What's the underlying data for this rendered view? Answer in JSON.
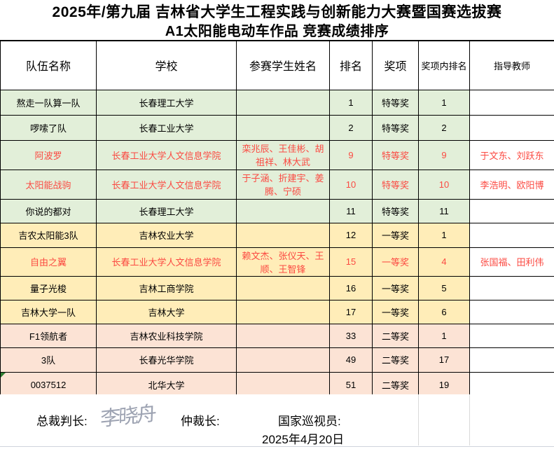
{
  "title": {
    "line1": "2025年/第九届 吉林省大学生工程实践与创新能力大赛暨国赛选拔赛",
    "line2": "A1太阳能电动车作品 竞赛成绩排序"
  },
  "table": {
    "headers": [
      "队伍名称",
      "学校",
      "参赛学生姓名",
      "排名",
      "奖项",
      "奖项内排名",
      "指导教师"
    ],
    "rows": [
      {
        "team": "熬走一队算一队",
        "school": "长春理工大学",
        "students": "",
        "rank": "1",
        "award": "特等奖",
        "award_rank": "1",
        "advisors": "",
        "tone": "green",
        "red": false,
        "flag": false
      },
      {
        "team": "啰嗦了队",
        "school": "长春工业大学",
        "students": "",
        "rank": "2",
        "award": "特等奖",
        "award_rank": "2",
        "advisors": "",
        "tone": "green",
        "red": false,
        "flag": false
      },
      {
        "team": "阿波罗",
        "school": "长春工业大学人文信息学院",
        "students": "栾兆辰、王佳彬、胡祖祥、林大武",
        "rank": "9",
        "award": "特等奖",
        "award_rank": "9",
        "advisors": "于文东、刘跃东",
        "tone": "green",
        "red": true,
        "flag": false
      },
      {
        "team": "太阳能战驹",
        "school": "长春工业大学人文信息学院",
        "students": "于子涵、折建宇、姜腾、宁硕",
        "rank": "10",
        "award": "特等奖",
        "award_rank": "10",
        "advisors": "李浩明、欧阳博",
        "tone": "green",
        "red": true,
        "flag": false
      },
      {
        "team": "你说的都对",
        "school": "长春理工大学",
        "students": "",
        "rank": "11",
        "award": "特等奖",
        "award_rank": "11",
        "advisors": "",
        "tone": "green",
        "red": false,
        "flag": false
      },
      {
        "team": "吉农太阳能3队",
        "school": "吉林农业大学",
        "students": "",
        "rank": "12",
        "award": "一等奖",
        "award_rank": "1",
        "advisors": "",
        "tone": "yellow",
        "red": false,
        "flag": false
      },
      {
        "team": "自由之翼",
        "school": "长春工业大学人文信息学院",
        "students": "赖文杰、张仪天、王顺、王智锋",
        "rank": "15",
        "award": "一等奖",
        "award_rank": "4",
        "advisors": "张国福、田利伟",
        "tone": "yellow",
        "red": true,
        "flag": false
      },
      {
        "team": "量子光梭",
        "school": "吉林工商学院",
        "students": "",
        "rank": "16",
        "award": "一等奖",
        "award_rank": "5",
        "advisors": "",
        "tone": "yellow",
        "red": false,
        "flag": false
      },
      {
        "team": "吉林大学一队",
        "school": "吉林大学",
        "students": "",
        "rank": "17",
        "award": "一等奖",
        "award_rank": "6",
        "advisors": "",
        "tone": "yellow",
        "red": false,
        "flag": false
      },
      {
        "team": "F1领航者",
        "school": "吉林农业科技学院",
        "students": "",
        "rank": "33",
        "award": "二等奖",
        "award_rank": "1",
        "advisors": "",
        "tone": "pink",
        "red": false,
        "flag": false
      },
      {
        "team": "3队",
        "school": "长春光华学院",
        "students": "",
        "rank": "49",
        "award": "二等奖",
        "award_rank": "17",
        "advisors": "",
        "tone": "pink",
        "red": false,
        "flag": false
      },
      {
        "team": "0037512",
        "school": "北华大学",
        "students": "",
        "rank": "51",
        "award": "二等奖",
        "award_rank": "19",
        "advisors": "",
        "tone": "pink",
        "red": false,
        "flag": true
      }
    ]
  },
  "footer": {
    "chief_judge_label": "总裁判长:",
    "chief_judge_signature": "李晓舟",
    "arbiter_label": "仲裁长:",
    "inspector_label": "国家巡视员:",
    "date": "2025年4月20日"
  },
  "colors": {
    "special_award_row": "#e2efd9",
    "first_award_row": "#ffedb8",
    "second_award_row": "#fce3d5",
    "highlight_text": "#fb4a42",
    "flag_triangle": "#2e7d32"
  }
}
